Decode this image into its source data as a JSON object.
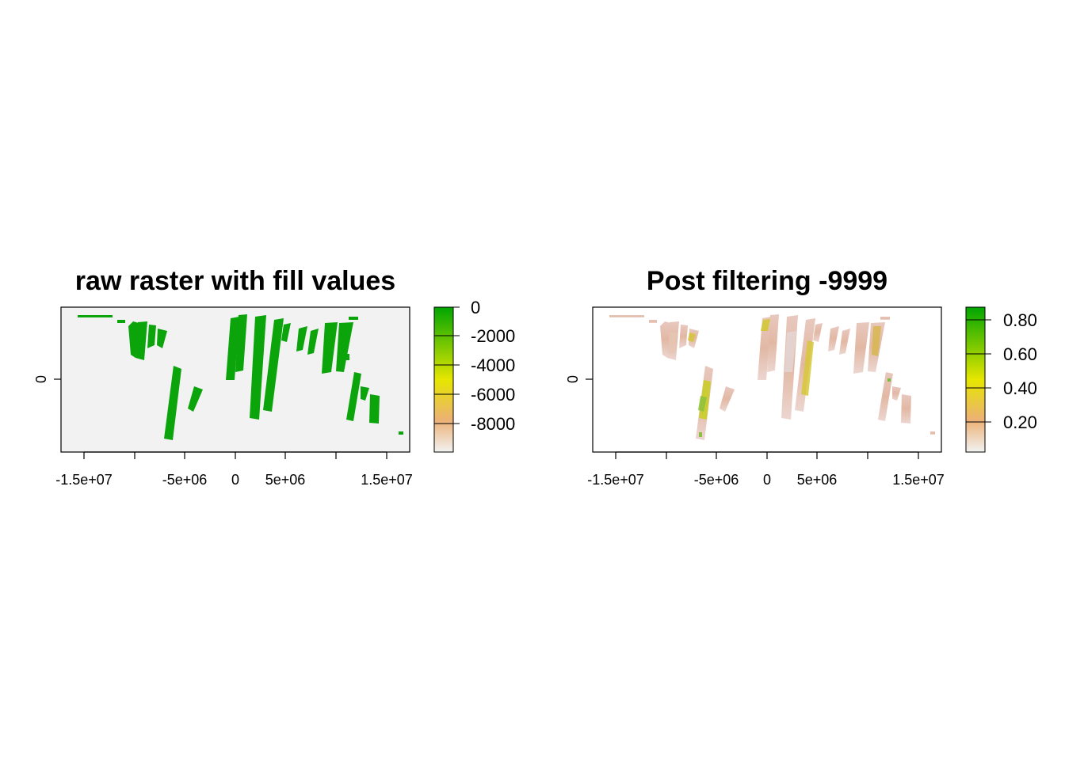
{
  "chart_data": [
    {
      "type": "heatmap",
      "title": "raw raster with fill values",
      "xlabel": "",
      "ylabel": "",
      "x_ticks": [
        "-1.5e+07",
        "-5e+06",
        "0",
        "5e+06",
        "1.5e+07"
      ],
      "y_ticks": [
        "0"
      ],
      "legend": {
        "position": "right",
        "ticks": [
          "0",
          "-2000",
          "-4000",
          "-6000",
          "-8000"
        ],
        "range": [
          -9999,
          0
        ],
        "colors": [
          "#00a600",
          "#e6e600",
          "#ecb176",
          "#f2f2f2"
        ]
      },
      "background_value": -9999,
      "background_color": "#f2f2f2",
      "data_color": "#0ba40b"
    },
    {
      "type": "heatmap",
      "title": "Post filtering -9999",
      "xlabel": "",
      "ylabel": "",
      "x_ticks": [
        "-1.5e+07",
        "-5e+06",
        "0",
        "5e+06",
        "1.5e+07"
      ],
      "y_ticks": [
        "0"
      ],
      "legend": {
        "position": "right",
        "ticks": [
          "0.80",
          "0.60",
          "0.40",
          "0.20"
        ],
        "range": [
          0.02,
          0.88
        ],
        "colors": [
          "#00a600",
          "#e6e600",
          "#ecb176",
          "#f2f2f2"
        ]
      },
      "background_color": "#ffffff"
    }
  ]
}
